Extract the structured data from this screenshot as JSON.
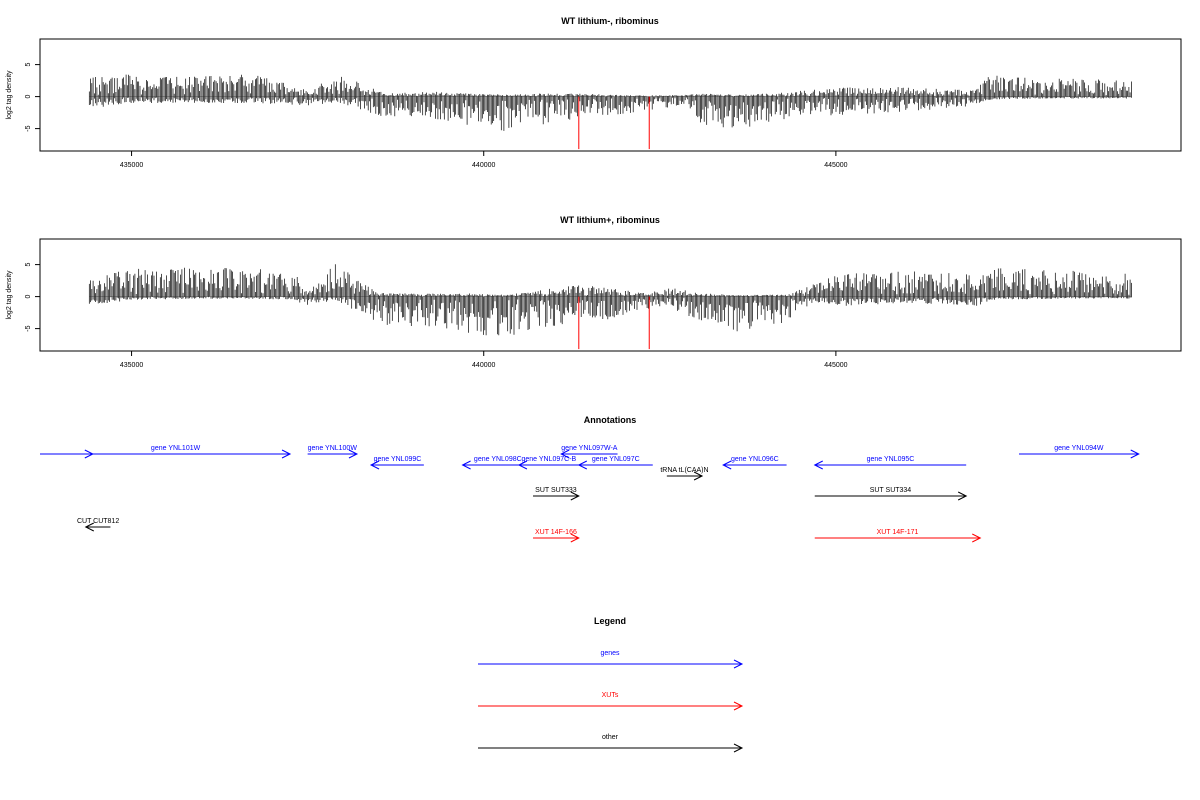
{
  "colors": {
    "genes": "#0000ff",
    "xuts": "#ff0000",
    "other": "#000000",
    "highlight": "#ff0000"
  },
  "chart_data": [
    {
      "type": "bar",
      "title": "WT lithium-, ribominus",
      "ylabel": "log2 tag density",
      "xlim": [
        433700,
        449900
      ],
      "ylim": [
        -8.5,
        9
      ],
      "yticks": [
        -5,
        0,
        5
      ],
      "xticks": [
        435000,
        440000,
        445000
      ],
      "xtick_labels": [
        "435000",
        "440000",
        "445000"
      ],
      "data_range": [
        434400,
        449200
      ],
      "highlight_positions": [
        441350,
        442350
      ],
      "profile": [
        [
          434400,
          3,
          -2
        ],
        [
          435000,
          3.5,
          -1
        ],
        [
          435800,
          3.2,
          -1
        ],
        [
          436800,
          3.5,
          -1
        ],
        [
          437500,
          1,
          -1.5
        ],
        [
          437900,
          3.5,
          -1
        ],
        [
          438300,
          2,
          -2.5
        ],
        [
          438600,
          0.5,
          -3.2
        ],
        [
          439300,
          0.8,
          -3.5
        ],
        [
          439800,
          0.5,
          -4.5
        ],
        [
          440300,
          0.3,
          -5.5
        ],
        [
          440800,
          0.5,
          -4.5
        ],
        [
          441300,
          0.5,
          -3.5
        ],
        [
          441800,
          0.3,
          -3
        ],
        [
          442300,
          0.2,
          -2.5
        ],
        [
          442900,
          0.3,
          -1.5
        ],
        [
          443100,
          0.5,
          -4.5
        ],
        [
          443600,
          0.3,
          -5.5
        ],
        [
          444100,
          0.5,
          -4
        ],
        [
          444600,
          1,
          -3
        ],
        [
          445000,
          1.5,
          -3
        ],
        [
          446000,
          1.5,
          -2.5
        ],
        [
          446900,
          1,
          -1.5
        ],
        [
          447200,
          3.5,
          -0.5
        ],
        [
          448000,
          3,
          -0.3
        ],
        [
          449200,
          2.5,
          -0.3
        ]
      ]
    },
    {
      "type": "bar",
      "title": "WT lithium+, ribominus",
      "ylabel": "log2 tag density",
      "xlim": [
        433700,
        449900
      ],
      "ylim": [
        -8.5,
        9
      ],
      "yticks": [
        -5,
        0,
        5
      ],
      "xticks": [
        435000,
        440000,
        445000
      ],
      "xtick_labels": [
        "435000",
        "440000",
        "445000"
      ],
      "data_range": [
        434400,
        449200
      ],
      "highlight_positions": [
        441350,
        442350
      ],
      "profile": [
        [
          434400,
          3,
          -1.5
        ],
        [
          435000,
          4.5,
          -0.5
        ],
        [
          436500,
          4.5,
          -0.3
        ],
        [
          437300,
          4,
          -0.5
        ],
        [
          437500,
          0.5,
          -1.5
        ],
        [
          437900,
          5.5,
          -0.5
        ],
        [
          438300,
          2,
          -3
        ],
        [
          438600,
          0.5,
          -4.5
        ],
        [
          439300,
          0.5,
          -5
        ],
        [
          439800,
          0.5,
          -6
        ],
        [
          440300,
          0.3,
          -6.5
        ],
        [
          440800,
          1,
          -5
        ],
        [
          441300,
          2,
          -4
        ],
        [
          441800,
          1.5,
          -3.5
        ],
        [
          442300,
          0.5,
          -2
        ],
        [
          442600,
          1.5,
          -1.5
        ],
        [
          443100,
          0.5,
          -4
        ],
        [
          443600,
          0.3,
          -5.5
        ],
        [
          444300,
          0.3,
          -4
        ],
        [
          444700,
          2,
          -1
        ],
        [
          445000,
          3.5,
          -1.5
        ],
        [
          446000,
          4,
          -1
        ],
        [
          447000,
          3.5,
          -1.5
        ],
        [
          447200,
          4.5,
          -0.5
        ],
        [
          448500,
          4,
          -0.3
        ],
        [
          449200,
          3.5,
          -0.3
        ]
      ]
    },
    {
      "type": "annotation-track",
      "title": "Annotations",
      "features": [
        {
          "label": "",
          "class": "genes",
          "start": 433700,
          "end": 434450,
          "strand": "+",
          "row": 0
        },
        {
          "label": "gene YNL101W",
          "class": "genes",
          "start": 434000,
          "end": 437250,
          "strand": "+",
          "row": 0
        },
        {
          "label": "gene YNL100W",
          "class": "genes",
          "start": 437500,
          "end": 438200,
          "strand": "+",
          "row": 0
        },
        {
          "label": "gene YNL099C",
          "class": "genes",
          "start": 438400,
          "end": 439150,
          "strand": "-",
          "row": 1
        },
        {
          "label": "gene YNL098C",
          "class": "genes",
          "start": 439700,
          "end": 440700,
          "strand": "-",
          "row": 1
        },
        {
          "label": "gene YNL097C-B",
          "class": "genes",
          "start": 440500,
          "end": 441350,
          "strand": "-",
          "row": 1
        },
        {
          "label": "gene YNL097W-A",
          "class": "genes",
          "start": 441100,
          "end": 441900,
          "strand": "-",
          "row": 0
        },
        {
          "label": "gene YNL097C",
          "class": "genes",
          "start": 441350,
          "end": 442400,
          "strand": "-",
          "row": 1
        },
        {
          "label": "tRNA tL(CAA)N",
          "class": "other",
          "start": 442600,
          "end": 443100,
          "strand": "+",
          "row": 2
        },
        {
          "label": "gene YNL096C",
          "class": "genes",
          "start": 443400,
          "end": 444300,
          "strand": "-",
          "row": 1
        },
        {
          "label": "gene YNL095C",
          "class": "genes",
          "start": 444700,
          "end": 446850,
          "strand": "-",
          "row": 1
        },
        {
          "label": "gene YNL094W",
          "class": "genes",
          "start": 447600,
          "end": 449300,
          "strand": "+",
          "row": 0
        },
        {
          "label": "SUT SUT333",
          "class": "other",
          "start": 440700,
          "end": 441350,
          "strand": "+",
          "row": 3
        },
        {
          "label": "SUT SUT334",
          "class": "other",
          "start": 444700,
          "end": 446850,
          "strand": "+",
          "row": 3
        },
        {
          "label": "CUT CUT812",
          "class": "other",
          "start": 434350,
          "end": 434700,
          "strand": "-",
          "row": 4
        },
        {
          "label": "XUT 14F-166",
          "class": "xuts",
          "start": 440700,
          "end": 441350,
          "strand": "+",
          "row": 5
        },
        {
          "label": "XUT 14F-171",
          "class": "xuts",
          "start": 444700,
          "end": 447050,
          "strand": "+",
          "row": 5
        }
      ]
    },
    {
      "type": "legend",
      "title": "Legend",
      "entries": [
        {
          "label": "genes",
          "class": "genes"
        },
        {
          "label": "XUTs",
          "class": "xuts"
        },
        {
          "label": "other",
          "class": "other"
        }
      ]
    }
  ]
}
